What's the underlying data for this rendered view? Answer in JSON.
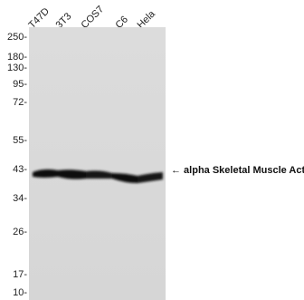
{
  "lanes": [
    "T47D",
    "3T3",
    "COS7",
    "C6",
    "Hela"
  ],
  "mw_markers": [
    "250-",
    "180-",
    "130-",
    "95-",
    "72-",
    "55-",
    "43-",
    "34-",
    "26-",
    "17-",
    "10-"
  ],
  "band": {
    "arrow_label": "← alpha Skeletal Muscle Actin"
  },
  "colors": {
    "membrane": "#d9d9d9",
    "band": "#111111"
  }
}
